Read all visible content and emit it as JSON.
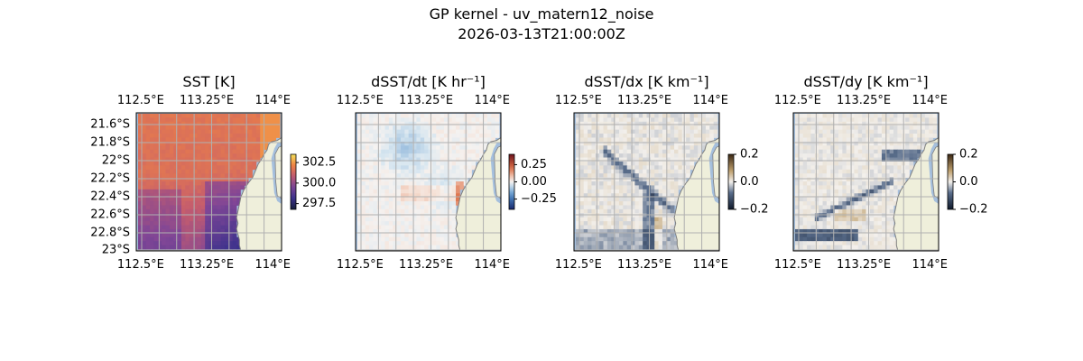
{
  "figure": {
    "title_line1": "GP kernel - uv_matern12_noise",
    "title_line2": "2026-03-13T21:00:00Z"
  },
  "colors": {
    "land": "#efefdb",
    "coast": "#7f7f7f",
    "water_gap": "#a5bfdd",
    "grid": "#b0b0b0"
  },
  "chart_data": [
    {
      "type": "heatmap",
      "title": "SST [K]",
      "xlabel": "",
      "ylabel": "",
      "lon_range": [
        112.45,
        114.1
      ],
      "lat_range": [
        -23.02,
        -21.45
      ],
      "x_ticks": [
        "112.5°E",
        "113.25°E",
        "114°E"
      ],
      "y_ticks": [
        "21.6°S",
        "21.8°S",
        "22°S",
        "22.2°S",
        "22.4°S",
        "22.6°S",
        "22.8°S",
        "23°S"
      ],
      "show_y_ticks": true,
      "colorbar": {
        "ticks": [
          "302.5",
          "300.0",
          "297.5"
        ],
        "range": [
          296.8,
          303.5
        ],
        "colormap": "thermal"
      }
    },
    {
      "type": "heatmap",
      "title": "dSST/dt [K hr⁻¹]",
      "xlabel": "",
      "ylabel": "",
      "lon_range": [
        112.45,
        114.1
      ],
      "lat_range": [
        -23.02,
        -21.45
      ],
      "x_ticks": [
        "112.5°E",
        "113.25°E",
        "114°E"
      ],
      "show_y_ticks": false,
      "colorbar": {
        "ticks": [
          "0.25",
          "0.00",
          "−0.25"
        ],
        "range": [
          -0.4,
          0.4
        ],
        "colormap": "balance"
      }
    },
    {
      "type": "heatmap",
      "title": "dSST/dx [K km⁻¹]",
      "xlabel": "",
      "ylabel": "",
      "lon_range": [
        112.45,
        114.1
      ],
      "lat_range": [
        -23.02,
        -21.45
      ],
      "x_ticks": [
        "112.5°E",
        "113.25°E",
        "114°E"
      ],
      "show_y_ticks": false,
      "colorbar": {
        "ticks": [
          "0.2",
          "0.0",
          "−0.2"
        ],
        "range": [
          -0.2,
          0.2
        ],
        "colormap": "diff"
      }
    },
    {
      "type": "heatmap",
      "title": "dSST/dy [K km⁻¹]",
      "xlabel": "",
      "ylabel": "",
      "lon_range": [
        112.45,
        114.1
      ],
      "lat_range": [
        -23.02,
        -21.45
      ],
      "x_ticks": [
        "112.5°E",
        "113.25°E",
        "114°E"
      ],
      "show_y_ticks": false,
      "colorbar": {
        "ticks": [
          "0.2",
          "0.0",
          "−0.2"
        ],
        "range": [
          -0.2,
          0.2
        ],
        "colormap": "diff"
      }
    }
  ]
}
